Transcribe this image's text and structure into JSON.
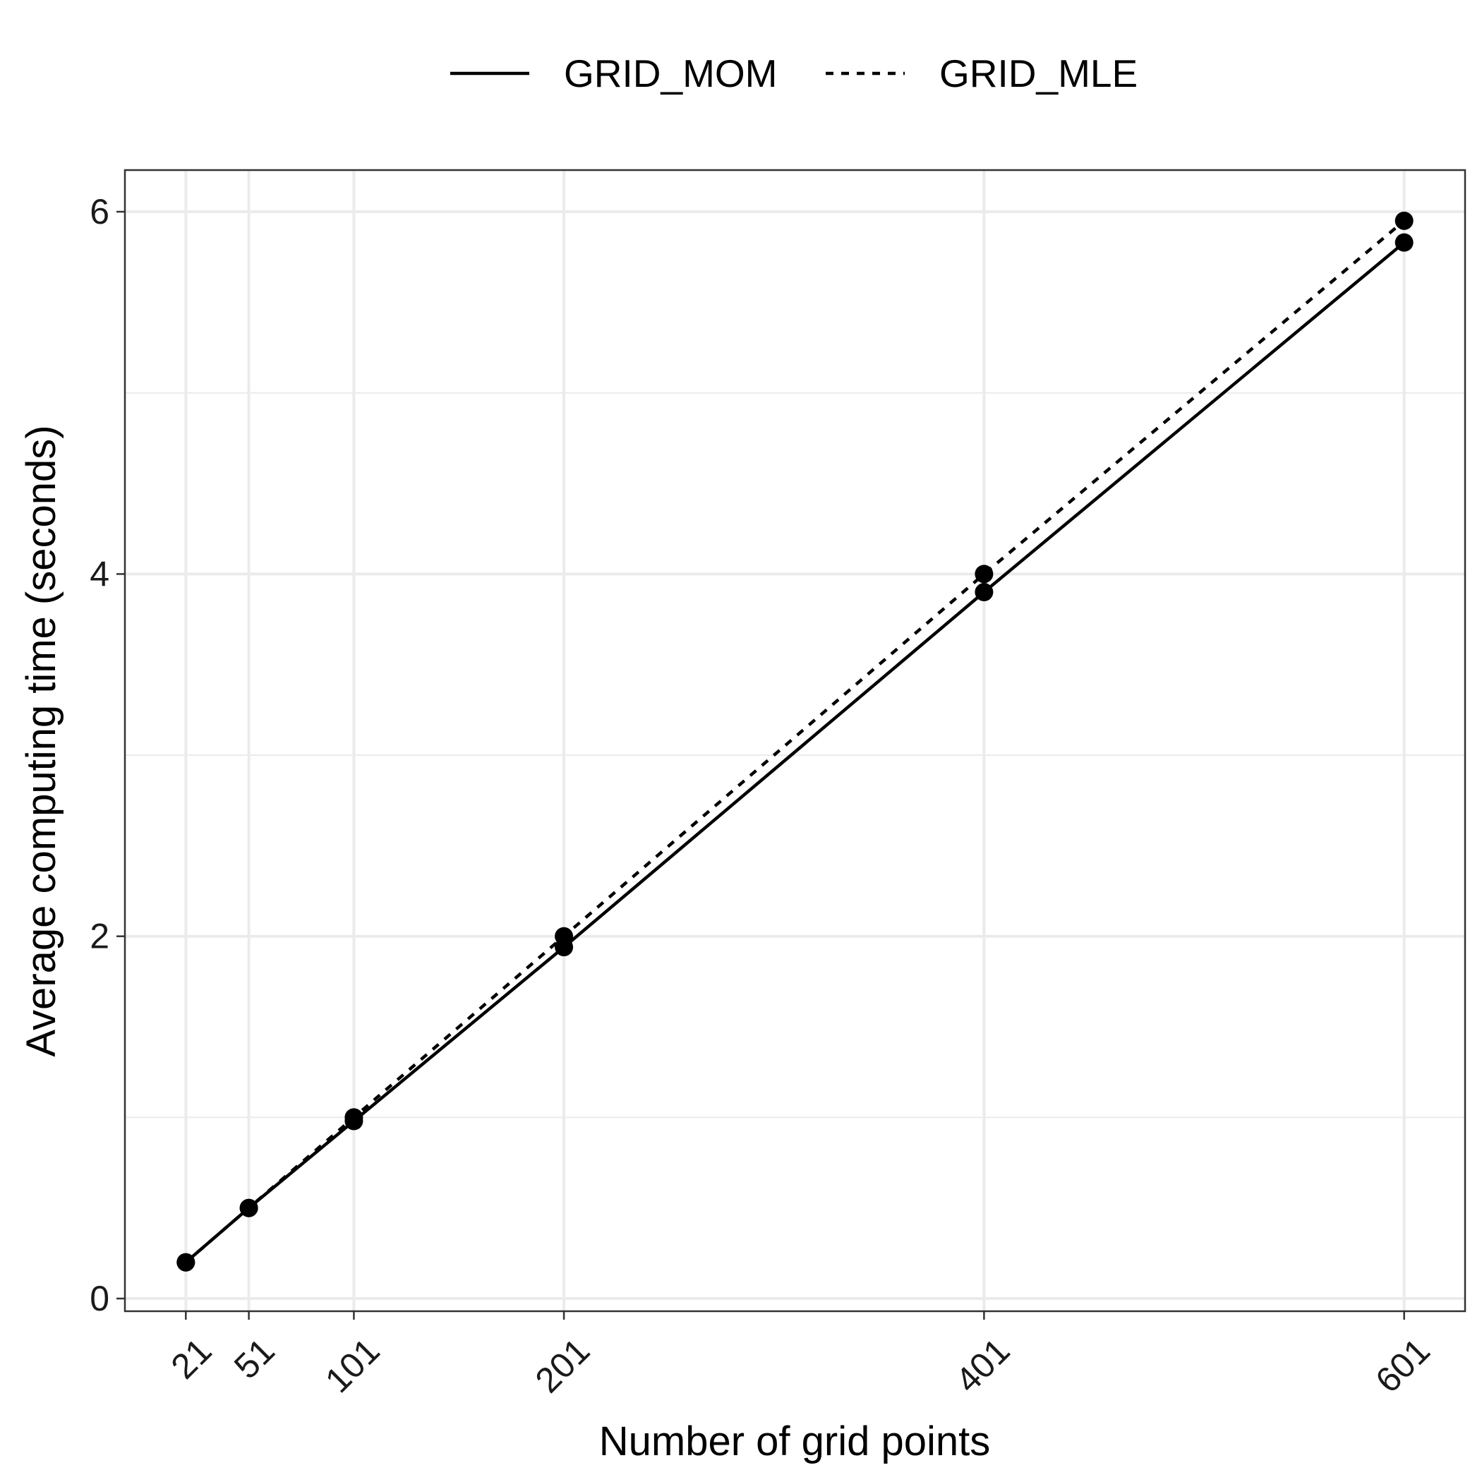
{
  "chart_data": {
    "type": "line",
    "title": "",
    "xlabel": "Number of grid points",
    "ylabel": "Average computing time (seconds)",
    "x": [
      21,
      51,
      101,
      201,
      401,
      601
    ],
    "x_tick_labels": [
      "21",
      "51",
      "101",
      "201",
      "401",
      "601"
    ],
    "y_ticks": [
      0,
      2,
      4,
      6
    ],
    "y_tick_labels": [
      "0",
      "2",
      "4",
      "6"
    ],
    "xlim": [
      -8,
      630
    ],
    "ylim": [
      -0.07,
      6.23
    ],
    "grid": true,
    "legend_position": "top",
    "series": [
      {
        "name": "GRID_MOM",
        "line_style": "solid",
        "color": "#000000",
        "values": [
          0.2,
          0.5,
          0.98,
          1.94,
          3.9,
          5.83
        ]
      },
      {
        "name": "GRID_MLE",
        "line_style": "dashed",
        "color": "#000000",
        "values": [
          0.2,
          0.5,
          1.0,
          2.0,
          4.0,
          5.95
        ]
      }
    ]
  },
  "colors": {
    "grid": "#ebebeb",
    "panel_border": "#333333",
    "ink": "#000000"
  }
}
